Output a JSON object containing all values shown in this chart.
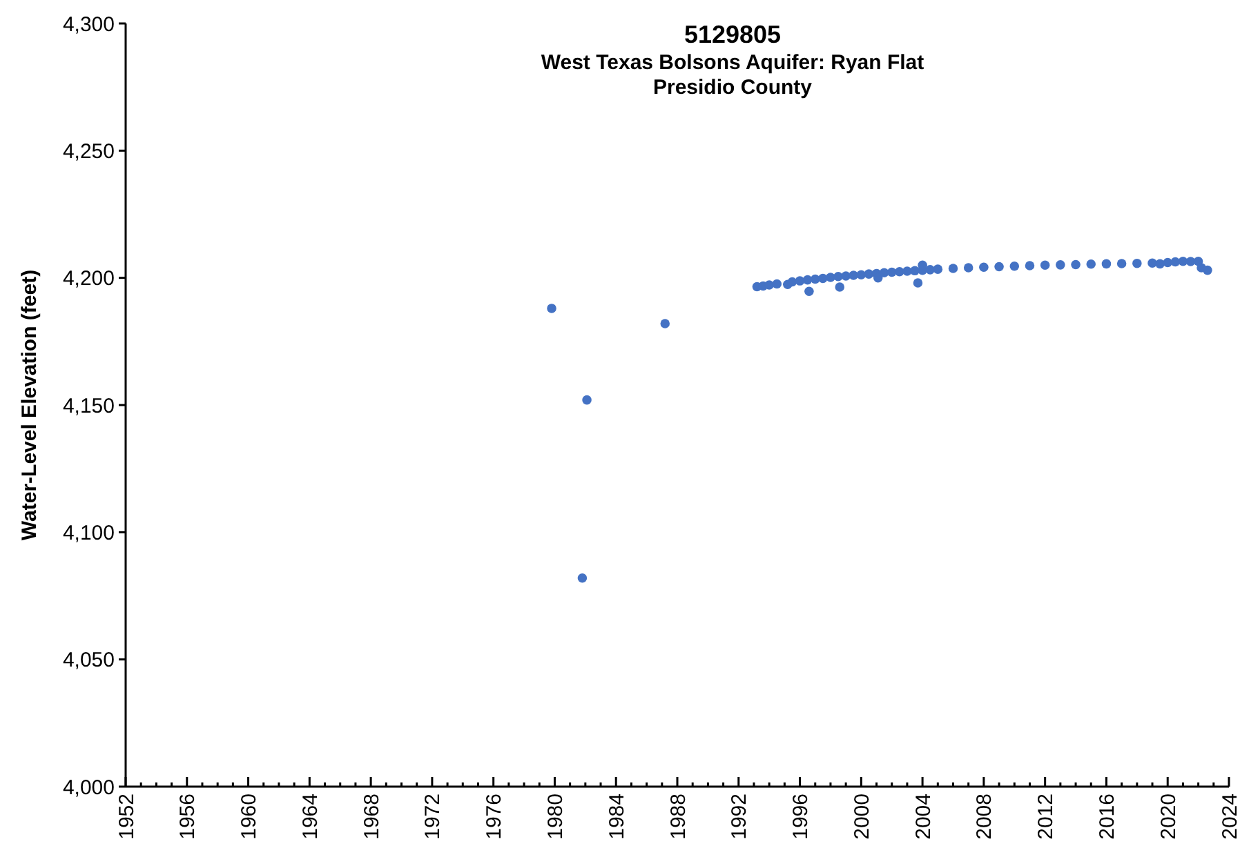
{
  "chart_data": {
    "type": "scatter",
    "title": "5129805",
    "subtitle": "West Texas Bolsons Aquifer: Ryan Flat\nPresidio County",
    "ylabel": "Water-Level Elevation (feet)",
    "xlim": [
      1952,
      2024
    ],
    "ylim": [
      4000,
      4300
    ],
    "xticks": [
      1952,
      {
        "value": 1953,
        "label": null
      },
      {
        "value": 1954,
        "label": null
      },
      {
        "value": 1955,
        "label": null
      },
      1956,
      {
        "value": 1957,
        "label": null
      },
      {
        "value": 1958,
        "label": null
      },
      {
        "value": 1959,
        "label": null
      },
      1960,
      {
        "value": 1961,
        "label": null
      },
      {
        "value": 1962,
        "label": null
      },
      {
        "value": 1963,
        "label": null
      },
      1964,
      {
        "value": 1965,
        "label": null
      },
      {
        "value": 1966,
        "label": null
      },
      {
        "value": 1967,
        "label": null
      },
      1968,
      {
        "value": 1969,
        "label": null
      },
      {
        "value": 1970,
        "label": null
      },
      {
        "value": 1971,
        "label": null
      },
      1972,
      {
        "value": 1973,
        "label": null
      },
      {
        "value": 1974,
        "label": null
      },
      {
        "value": 1975,
        "label": null
      },
      1976,
      {
        "value": 1977,
        "label": null
      },
      {
        "value": 1978,
        "label": null
      },
      {
        "value": 1979,
        "label": null
      },
      1980,
      {
        "value": 1981,
        "label": null
      },
      {
        "value": 1982,
        "label": null
      },
      {
        "value": 1983,
        "label": null
      },
      1984,
      {
        "value": 1985,
        "label": null
      },
      {
        "value": 1986,
        "label": null
      },
      {
        "value": 1987,
        "label": null
      },
      1988,
      {
        "value": 1989,
        "label": null
      },
      {
        "value": 1990,
        "label": null
      },
      {
        "value": 1991,
        "label": null
      },
      1992,
      {
        "value": 1993,
        "label": null
      },
      {
        "value": 1994,
        "label": null
      },
      {
        "value": 1995,
        "label": null
      },
      1996,
      {
        "value": 1997,
        "label": null
      },
      {
        "value": 1998,
        "label": null
      },
      {
        "value": 1999,
        "label": null
      },
      2000,
      {
        "value": 2001,
        "label": null
      },
      {
        "value": 2002,
        "label": null
      },
      {
        "value": 2003,
        "label": null
      },
      2004,
      {
        "value": 2005,
        "label": null
      },
      {
        "value": 2006,
        "label": null
      },
      {
        "value": 2007,
        "label": null
      },
      2008,
      {
        "value": 2009,
        "label": null
      },
      {
        "value": 2010,
        "label": null
      },
      {
        "value": 2011,
        "label": null
      },
      2012,
      {
        "value": 2013,
        "label": null
      },
      {
        "value": 2014,
        "label": null
      },
      {
        "value": 2015,
        "label": null
      },
      2016,
      {
        "value": 2017,
        "label": null
      },
      {
        "value": 2018,
        "label": null
      },
      {
        "value": 2019,
        "label": null
      },
      2020,
      {
        "value": 2021,
        "label": null
      },
      {
        "value": 2022,
        "label": null
      },
      {
        "value": 2023,
        "label": null
      },
      2024
    ],
    "yticks": [
      {
        "value": 4000,
        "label": "4,000"
      },
      {
        "value": 4050,
        "label": "4,050"
      },
      {
        "value": 4100,
        "label": "4,100"
      },
      {
        "value": 4150,
        "label": "4,150"
      },
      {
        "value": 4200,
        "label": "4,200"
      },
      {
        "value": 4250,
        "label": "4,250"
      },
      {
        "value": 4300,
        "label": "4,300"
      }
    ],
    "grid": false,
    "marker": "circle",
    "series": [
      {
        "color": "#4472c4",
        "x": [
          1979.8,
          1981.8,
          1982.1,
          1987.2,
          1993.2,
          1993.6,
          1994.0,
          1994.5,
          1995.2,
          1995.5,
          1996.0,
          1996.5,
          1996.6,
          1997.0,
          1997.5,
          1998.0,
          1998.5,
          1998.6,
          1999.0,
          1999.5,
          2000.0,
          2000.5,
          2001.0,
          2001.1,
          2001.5,
          2002.0,
          2002.5,
          2003.0,
          2003.5,
          2003.7,
          2004.0,
          2004.0,
          2004.5,
          2005.0,
          2006.0,
          2007.0,
          2008.0,
          2009.0,
          2010.0,
          2011.0,
          2012.0,
          2013.0,
          2014.0,
          2015.0,
          2016.0,
          2017.0,
          2018.0,
          2019.0,
          2019.5,
          2020.0,
          2020.5,
          2021.0,
          2021.5,
          2022.0,
          2022.2,
          2022.6
        ],
        "values": [
          4188,
          4082,
          4152,
          4182,
          4196.5,
          4196.8,
          4197.2,
          4197.6,
          4197.4,
          4198.4,
          4198.8,
          4199.2,
          4194.7,
          4199.5,
          4199.8,
          4200.2,
          4200.5,
          4196.4,
          4200.7,
          4201,
          4201.2,
          4201.5,
          4201.7,
          4200,
          4202,
          4202.2,
          4202.4,
          4202.6,
          4202.8,
          4198,
          4203,
          4205,
          4203.2,
          4203.4,
          4203.7,
          4204,
          4204.2,
          4204.4,
          4204.6,
          4204.8,
          4205,
          4205.1,
          4205.2,
          4205.4,
          4205.5,
          4205.6,
          4205.7,
          4205.8,
          4205.5,
          4206,
          4206.3,
          4206.5,
          4206.4,
          4206.5,
          4204,
          4203
        ]
      }
    ]
  }
}
